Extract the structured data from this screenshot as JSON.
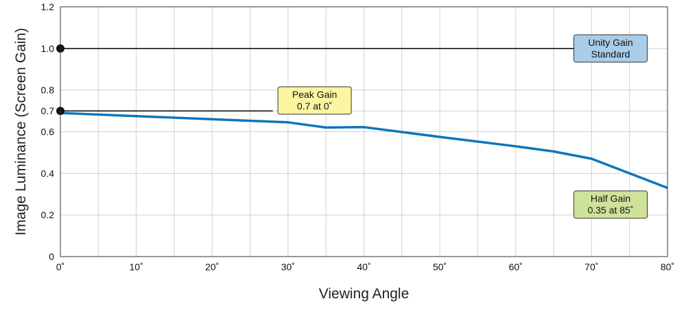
{
  "chart_data": {
    "type": "line",
    "xlabel": "Viewing Angle",
    "ylabel": "Image Luminance (Screen Gain)",
    "xlim": [
      0,
      80
    ],
    "ylim": [
      0,
      1.2
    ],
    "x_ticks": [
      0,
      10,
      20,
      30,
      40,
      50,
      60,
      70,
      80
    ],
    "x_tick_labels": [
      "0˚",
      "10˚",
      "20˚",
      "30˚",
      "40˚",
      "50˚",
      "60˚",
      "70˚",
      "80˚"
    ],
    "y_ticks": [
      0,
      0.2,
      0.4,
      0.6,
      0.7,
      0.8,
      1.0,
      1.2
    ],
    "y_tick_labels": [
      "0",
      "0.2",
      "0.4",
      "0.6",
      "0.7",
      "0.8",
      "1.0",
      "1.2"
    ],
    "x_grid_step": 5,
    "grid": true,
    "series": [
      {
        "color": "#0f75bc",
        "x": [
          0,
          10,
          20,
          30,
          35,
          40,
          50,
          60,
          65,
          70,
          80
        ],
        "y": [
          0.69,
          0.675,
          0.66,
          0.645,
          0.62,
          0.622,
          0.575,
          0.53,
          0.505,
          0.47,
          0.33
        ]
      }
    ],
    "reference_lines": [
      {
        "y": 1.0,
        "x_end": 68,
        "color": "#000000"
      },
      {
        "y": 0.7,
        "x_end": 28,
        "color": "#000000"
      }
    ],
    "markers": [
      {
        "x": 0,
        "y": 1.0
      },
      {
        "x": 0,
        "y": 0.7
      }
    ],
    "annotations": [
      {
        "lines": [
          "Unity Gain",
          "Standard"
        ],
        "fill": "#a9cde9",
        "x": 72.5,
        "y": 1.0
      },
      {
        "lines": [
          "Peak Gain",
          "0.7 at 0˚"
        ],
        "fill": "#fbf5a0",
        "x": 33.5,
        "y": 0.75
      },
      {
        "lines": [
          "Half Gain",
          "0.35 at 85˚"
        ],
        "fill": "#cfe29b",
        "x": 72.5,
        "y": 0.25
      }
    ]
  }
}
